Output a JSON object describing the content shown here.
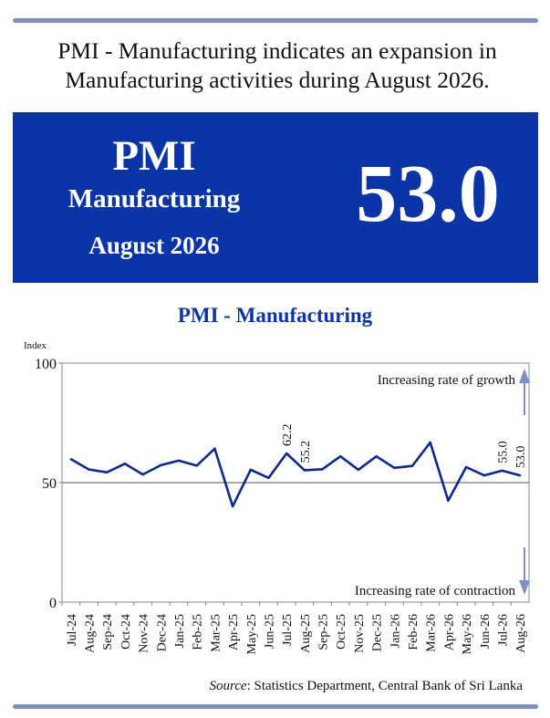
{
  "headline": {
    "line1": "PMI - Manufacturing indicates an expansion in",
    "line2": "Manufacturing activities during August 2026."
  },
  "banner": {
    "index_name": "PMI",
    "sector": "Manufacturing",
    "period": "August 2026",
    "value": "53.0",
    "background": "#0b34a6"
  },
  "chart_data": {
    "type": "line",
    "title": "PMI - Manufacturing",
    "ylabel": "Index",
    "xlabel": "",
    "ylim": [
      0,
      100
    ],
    "yticks": [
      0,
      50,
      100
    ],
    "reference_line": 50,
    "grid": false,
    "categories": [
      "Jul-24",
      "Aug-24",
      "Sep-24",
      "Oct-24",
      "Nov-24",
      "Dec-24",
      "Jan-25",
      "Feb-25",
      "Mar-25",
      "Apr-25",
      "May-25",
      "Jun-25",
      "Jul-25",
      "Aug-25",
      "Sep-25",
      "Oct-25",
      "Nov-25",
      "Dec-25",
      "Jan-26",
      "Feb-26",
      "Mar-26",
      "Apr-26",
      "May-26",
      "Jun-26",
      "Jul-26",
      "Aug-26"
    ],
    "series": [
      {
        "color": "#0b2a8a",
        "values": [
          59.8,
          55.5,
          54.3,
          57.9,
          53.4,
          57.3,
          59.2,
          57.1,
          64.2,
          40.1,
          55.4,
          52.0,
          62.2,
          55.2,
          55.6,
          61.0,
          55.4,
          61.0,
          56.2,
          57.0,
          66.8,
          42.5,
          56.5,
          53.0,
          55.0,
          53.0
        ]
      }
    ],
    "data_labels": [
      {
        "category": "Jul-25",
        "text": "62.2"
      },
      {
        "category": "Aug-25",
        "text": "55.2"
      },
      {
        "category": "Jul-26",
        "text": "55.0"
      },
      {
        "category": "Aug-26",
        "text": "53.0"
      }
    ],
    "annotations": {
      "growth": "Increasing rate of growth",
      "contraction": "Increasing rate of contraction"
    },
    "arrow_color": "#7f8fc4"
  },
  "source": {
    "label": "Source",
    "text": ": Statistics Department, Central Bank of Sri Lanka"
  }
}
